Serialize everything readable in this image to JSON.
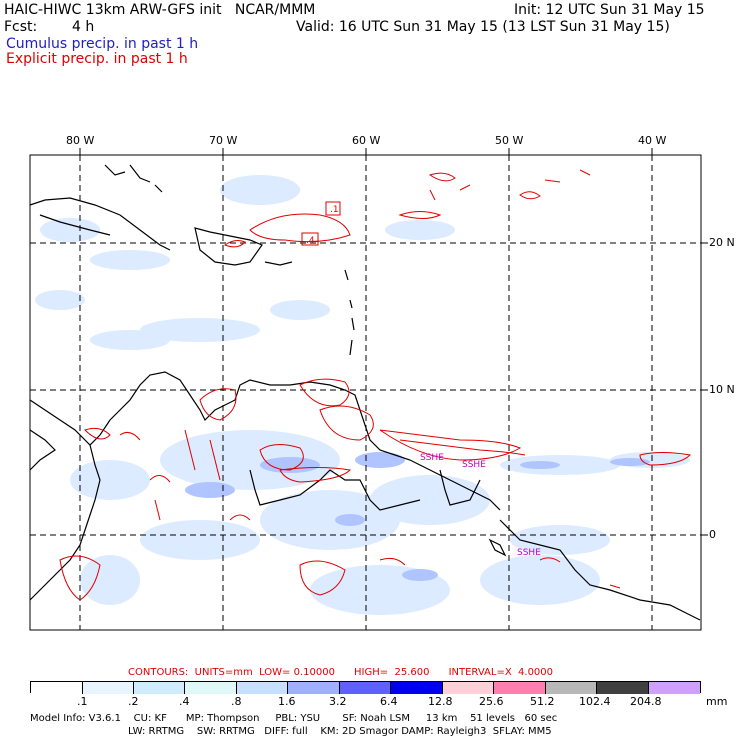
{
  "header": {
    "model_line": "HAIC-HIWC 13km ARW-GFS init   NCAR/MMM",
    "init_line": "Init: 12 UTC Sun 31 May 15",
    "fcst_label": "Fcst:",
    "fcst_value": "4 h",
    "valid_line": "Valid: 16 UTC Sun 31 May 15 (13 LST Sun 31 May 15)",
    "legend_cumulus": "Cumulus precip. in past 1 h",
    "legend_explicit": "Explicit precip. in past 1 h",
    "cumulus_color": "#2020c0",
    "explicit_color": "#e00000"
  },
  "map": {
    "lon_labels": [
      "80 W",
      "70 W",
      "60 W",
      "50 W",
      "40 W"
    ],
    "lat_labels": [
      "20 N",
      "10 N",
      "0"
    ],
    "contour_labels": [
      ".1",
      ".4",
      "SSHE",
      "SSHE",
      "SSHE"
    ],
    "coast_color": "#000000",
    "grid_style": "dashed"
  },
  "contours_info": "CONTOURS:  UNITS=mm  LOW= 0.10000      HIGH=  25.600      INTERVAL=X  4.0000",
  "colorbar": {
    "unit": "mm",
    "ticks": [
      ".1",
      ".2",
      ".4",
      ".8",
      "1.6",
      "3.2",
      "6.4",
      "12.8",
      "25.6",
      "51.2",
      "102.4",
      "204.8"
    ],
    "colors": [
      "#ffffff",
      "#e8f4ff",
      "#d0ecff",
      "#e0f8f8",
      "#c8e0ff",
      "#a0b0ff",
      "#6060ff",
      "#0000f0",
      "#ffd0d8",
      "#ff80b0",
      "#b8b8b8",
      "#404040",
      "#d0a0ff"
    ]
  },
  "model_info": {
    "line1": "Model Info: V3.6.1    CU: KF      MP: Thompson     PBL: YSU       SF: Noah LSM     13 km    51 levels   60 sec",
    "line2": "LW: RRTMG    SW: RRTMG   DIFF: full    KM: 2D Smagor DAMP: Rayleigh3  SFLAY: MM5"
  }
}
